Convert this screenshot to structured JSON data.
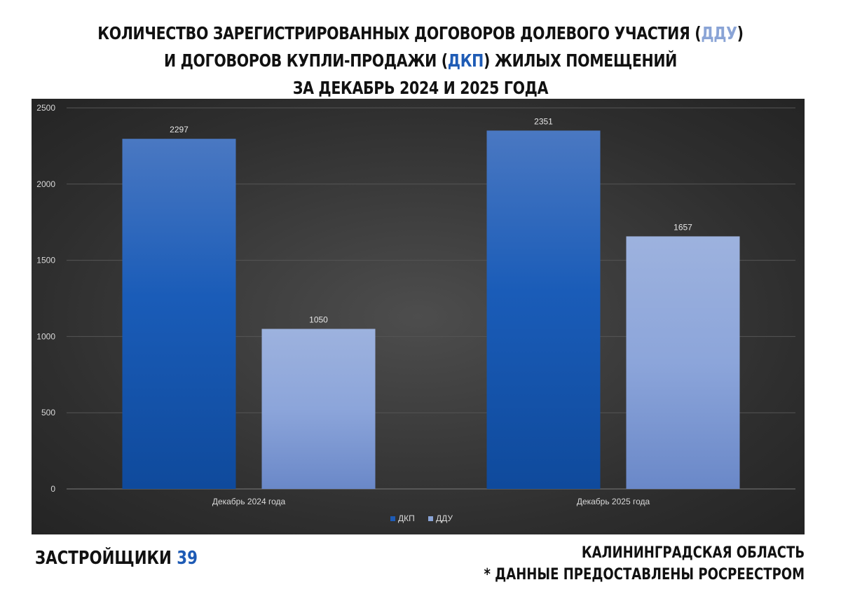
{
  "header": {
    "title_line1_pre": "КОЛИЧЕСТВО ЗАРЕГИСТРИРОВАННЫХ ДОГОВОРОВ ДОЛЕВОГО УЧАСТИЯ (",
    "title_line1_hl": "ДДУ",
    "title_line1_post": ")",
    "title_line2_pre": "И ДОГОВОРОВ КУПЛИ-ПРОДАЖИ (",
    "title_line2_hl": "ДКП",
    "title_line2_post": ") ЖИЛЫХ ПОМЕЩЕНИЙ",
    "title_line3": "ЗА ДЕКАБРЬ 2024 И 2025 ГОДА"
  },
  "footer": {
    "brand_text": "ЗАСТРОЙЩИКИ",
    "brand_number": "39",
    "region": "КАЛИНИНГРАДСКАЯ ОБЛАСТЬ",
    "source_note": "* ДАННЫЕ ПРЕДОСТАВЛЕНЫ РОСРЕЕСТРОМ"
  },
  "colors": {
    "dkp": "#1e5bb5",
    "ddu": "#8aa4d6",
    "panel_bg": "#333333"
  },
  "chart_data": {
    "type": "bar",
    "title": "",
    "xlabel": "",
    "ylabel": "",
    "categories": [
      "Декабрь 2024 года",
      "Декабрь 2025 года"
    ],
    "series": [
      {
        "name": "ДКП",
        "values": [
          2297,
          2351
        ]
      },
      {
        "name": "ДДУ",
        "values": [
          1050,
          1657
        ]
      }
    ],
    "ylim": [
      0,
      2500
    ],
    "yticks": [
      0,
      500,
      1000,
      1500,
      2000,
      2500
    ],
    "grid": true,
    "legend": "bottom"
  }
}
